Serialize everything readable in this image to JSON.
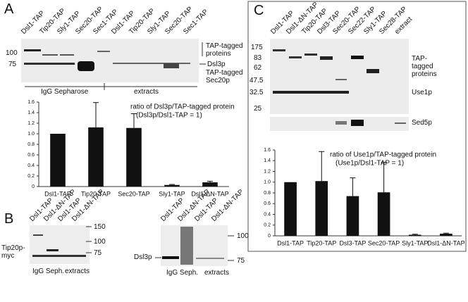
{
  "panel_labels": [
    "A",
    "B",
    "C"
  ],
  "gel_A": {
    "lanes": [
      "Dsl1-TAP",
      "Tip20-TAP",
      "Sly1-TAP",
      "Sec20-TAP",
      "Sec1-TAP",
      "Dsl1-TAP",
      "Tip20-TAP",
      "Sly1-TAP",
      "Sec20-TAP",
      "Sec1-TAP"
    ],
    "markers": [
      "100",
      "75"
    ],
    "annotations": [
      "TAP-tagged proteins",
      "Dsl3p",
      "TAP-tagged Sec20p"
    ],
    "groups": [
      "IgG Sepharose",
      "extracts"
    ]
  },
  "gel_B_left": {
    "lanes": [
      "Dsl1-TAP",
      "Dsl1-ΔN-TAP",
      "Dsl1-TAP",
      "Dsl1-ΔN-TAP"
    ],
    "markers": [
      "150",
      "100",
      "75"
    ],
    "annotations": [
      "Tip20p-myc"
    ],
    "groups": [
      "IgG Seph.",
      "extracts"
    ]
  },
  "gel_B_right": {
    "lanes": [
      "Dsl1-TAP",
      "Dsl1-ΔN-TAP",
      "Dsl1-TAP",
      "Dsl1-ΔN-TAP"
    ],
    "markers": [
      "100",
      "75"
    ],
    "annotations": [
      "Dsl3p"
    ],
    "groups": [
      "IgG Seph.",
      "extracts"
    ]
  },
  "gel_C": {
    "lanes": [
      "Dsl1-TAP",
      "Dsl1-ΔN-TAP",
      "Tip20-TAP",
      "Dsl3-TAP",
      "Sec20-TAP",
      "Sec22-TAP",
      "Sly1-TAP",
      "Sec28-TAP",
      "extract"
    ],
    "markers": [
      "175",
      "83",
      "62",
      "47.5",
      "32.5",
      "25"
    ],
    "annotations": [
      "TAP-tagged proteins",
      "Use1p",
      "Sed5p"
    ]
  },
  "chart_data": [
    {
      "type": "bar",
      "title": "ratio of Dsl3p/TAP-tagged protein",
      "subtitle": "(Dsl3p/Dsl1-TAP = 1)",
      "categories": [
        "Dsl1-TAP",
        "Tip20-TAP",
        "Sec20-TAP",
        "Sly1-TAP",
        "Dsl1-ΔN-TAP"
      ],
      "values": [
        1.0,
        1.12,
        1.11,
        0.03,
        0.08
      ],
      "errors": [
        null,
        0.47,
        0.27,
        0.01,
        0.02
      ],
      "color": "#111111",
      "ylim": [
        0,
        1.6
      ],
      "yticks": [
        0,
        0.2,
        0.4,
        0.6,
        0.8,
        {
          "value": 1,
          "label": "1.0"
        },
        1.2,
        1.4,
        1.6
      ]
    },
    {
      "type": "bar",
      "title": "ratio of Use1p/TAP-tagged protein",
      "subtitle": "(Use1p/Dsl1-TAP = 1)",
      "categories": [
        "Dsl1-TAP",
        "Tip20-TAP",
        "Dsl3-TAP",
        "Sec20-TAP",
        "Sly1-TAP",
        "Dsl1-ΔN-TAP"
      ],
      "values": [
        1.0,
        1.02,
        0.74,
        0.81,
        0.02,
        0.04
      ],
      "errors": [
        null,
        0.55,
        0.34,
        0.56,
        0.01,
        0.01
      ],
      "color": "#111111",
      "ylim": [
        0,
        1.6
      ],
      "yticks": [
        0,
        0.2,
        0.4,
        0.6,
        0.8,
        {
          "value": 1,
          "label": "1.0"
        },
        1.2,
        1.4,
        1.6
      ]
    }
  ]
}
